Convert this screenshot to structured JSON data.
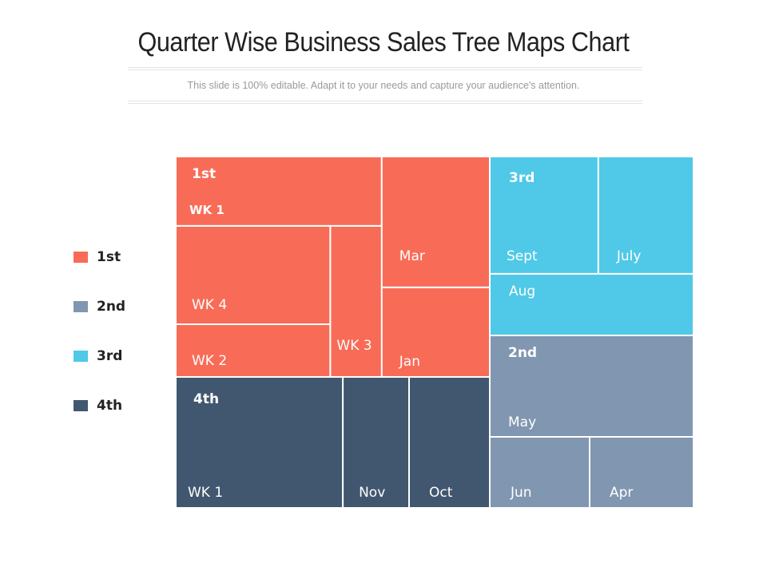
{
  "header": {
    "title": "Quarter Wise Business Sales Tree Maps Chart",
    "subtitle": "This slide is 100% editable. Adapt it to your needs and capture your audience's attention."
  },
  "colors": {
    "1st": "#f86c57",
    "2nd": "#8196b0",
    "3rd": "#4fc9e7",
    "4th": "#41576f"
  },
  "legend": [
    {
      "label": "1st",
      "group": "1st"
    },
    {
      "label": "2nd",
      "group": "2nd"
    },
    {
      "label": "3rd",
      "group": "3rd"
    },
    {
      "label": "4th",
      "group": "4th"
    }
  ],
  "chart_data": {
    "type": "treemap",
    "title": "Quarter Wise Business Sales Tree Maps Chart",
    "groups": [
      {
        "name": "1st",
        "tiles": [
          {
            "label": "WK 1",
            "share": 0.2244
          },
          {
            "label": "WK 4",
            "share": 0.1376
          },
          {
            "label": "WK 2",
            "share": 0.1087
          },
          {
            "label": "WK 3",
            "share": 0.1221
          },
          {
            "label": "Mar",
            "share": 0.2099
          },
          {
            "label": "Jan",
            "share": 0.1974
          }
        ]
      },
      {
        "name": "3rd",
        "tiles": [
          {
            "label": "Sept",
            "share": 0.3524
          },
          {
            "label": "July",
            "share": 0.3087
          },
          {
            "label": "Aug",
            "share": 0.3389
          }
        ]
      },
      {
        "name": "2nd",
        "tiles": [
          {
            "label": "May",
            "share": 0.5385
          },
          {
            "label": "Jun",
            "share": 0.2491
          },
          {
            "label": "Apr",
            "share": 0.2124
          }
        ]
      },
      {
        "name": "4th",
        "tiles": [
          {
            "label": "WK 1",
            "share": 0.5329
          },
          {
            "label": "Nov",
            "share": 0.2113
          },
          {
            "label": "Oct",
            "share": 0.2558
          }
        ]
      }
    ]
  }
}
